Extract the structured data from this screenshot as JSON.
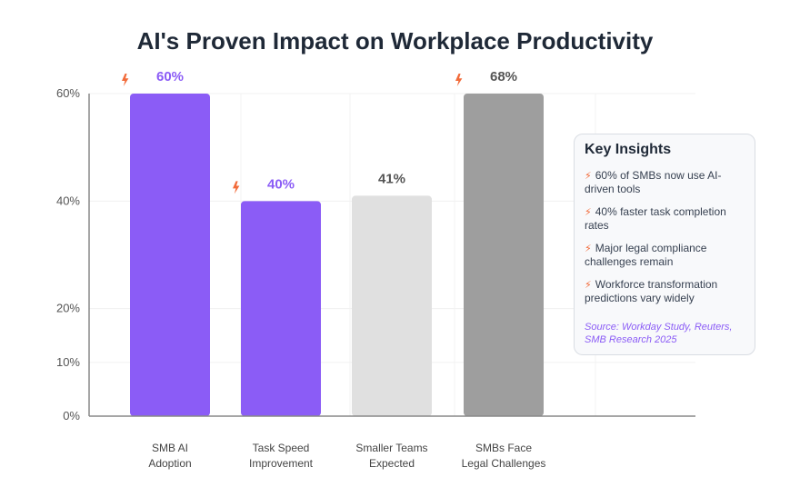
{
  "chart_data": {
    "type": "bar",
    "title": "AI's Proven Impact on Workplace Productivity",
    "categories": [
      "SMB AI Adoption",
      "Task Speed Improvement",
      "Smaller Teams Expected",
      "SMBs Face Legal Challenges"
    ],
    "category_lines": [
      [
        "SMB AI",
        "Adoption"
      ],
      [
        "Task Speed",
        "Improvement"
      ],
      [
        "Smaller Teams",
        "Expected"
      ],
      [
        "SMBs Face",
        "Legal Challenges"
      ]
    ],
    "values": [
      60,
      40,
      41,
      68
    ],
    "value_labels": [
      "60%",
      "40%",
      "41%",
      "68%"
    ],
    "bar_colors": [
      "#8b5cf6",
      "#8b5cf6",
      "#e0e0e0",
      "#9e9e9e"
    ],
    "label_colors": [
      "#8b5cf6",
      "#8b5cf6",
      "#555555",
      "#555555"
    ],
    "bolt_markers": [
      true,
      true,
      false,
      true
    ],
    "yticks": [
      "0%",
      "10%",
      "20%",
      "40%",
      "60%"
    ],
    "ylim": [
      0,
      60
    ],
    "grid": true,
    "xlabel": "",
    "ylabel": "",
    "legend": "none"
  },
  "insights": {
    "title": "Key Insights",
    "icon": "lightning-icon",
    "items": [
      "60% of SMBs now use AI-driven tools",
      "40% faster task completion rates",
      "Major legal compliance challenges remain",
      "Workforce transformation predictions vary widely"
    ],
    "source": "Source: Workday Study, Reuters, SMB Research 2025"
  },
  "colors": {
    "accent": "#8b5cf6",
    "bolt": "#f26b3a",
    "grey_bar": "#9e9e9e",
    "light_bar": "#e0e0e0"
  }
}
